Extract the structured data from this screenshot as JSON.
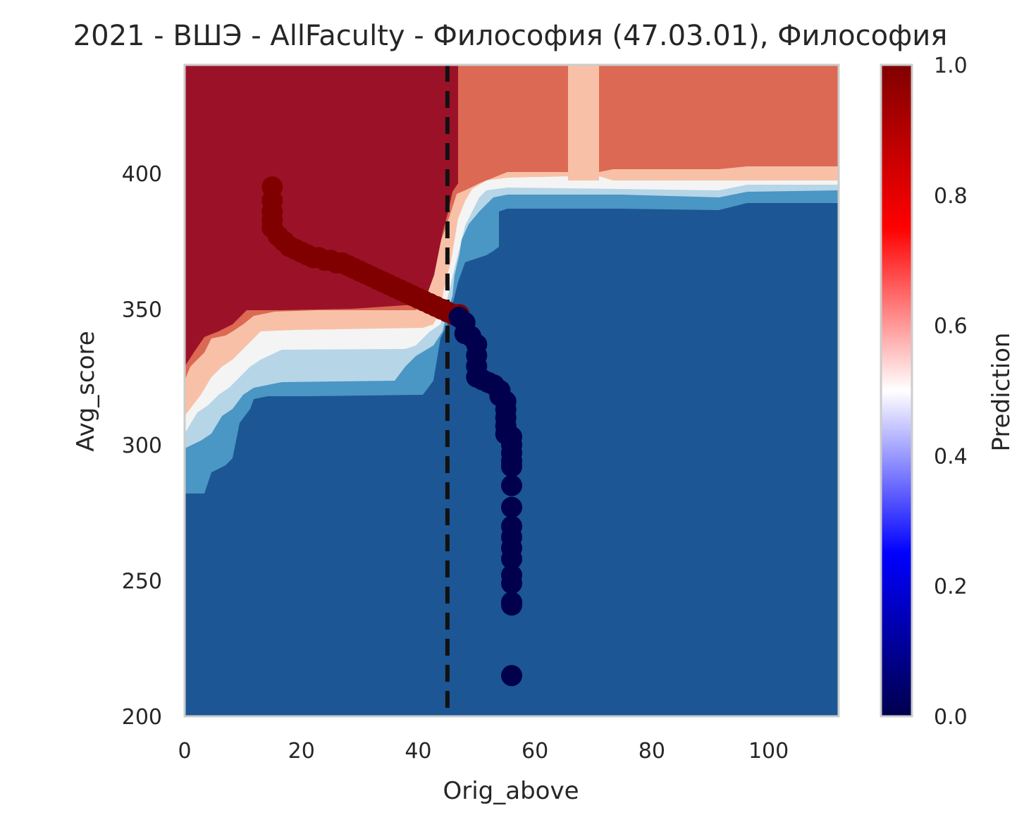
{
  "chart_data": {
    "type": "heatmap",
    "title": "2021 - ВШЭ - AllFaculty - Философия (47.03.01), Философия",
    "xlabel": "Orig_above",
    "ylabel": "Avg_score",
    "xlim": [
      0,
      112
    ],
    "ylim": [
      200,
      440
    ],
    "xticks": [
      "0",
      "20",
      "40",
      "60",
      "80",
      "100"
    ],
    "yticks": [
      "200",
      "250",
      "300",
      "350",
      "400"
    ],
    "colorbar": {
      "label": "Prediction",
      "range": [
        0.0,
        1.0
      ],
      "ticks": [
        "0.0",
        "0.2",
        "0.4",
        "0.6",
        "0.8",
        "1.0"
      ],
      "colormap": "seismic"
    },
    "threshold_line": {
      "x": 45,
      "style": "dashed",
      "color": "#111111"
    },
    "contour_colors": {
      "very_high": "#9b1228",
      "high": "#dc6953",
      "mid_high": "#f8c1a7",
      "mid": "#f4f4f4",
      "mid_low": "#b6d5e7",
      "low": "#4a96c4",
      "very_low": "#1c5694"
    },
    "points_admitted": {
      "color": "#800000",
      "points": [
        [
          15,
          395
        ],
        [
          15,
          390
        ],
        [
          15,
          386
        ],
        [
          15,
          383
        ],
        [
          15,
          380
        ],
        [
          16,
          377
        ],
        [
          17,
          375
        ],
        [
          18,
          373
        ],
        [
          19,
          372
        ],
        [
          20,
          371
        ],
        [
          21,
          370
        ],
        [
          22,
          369
        ],
        [
          23,
          369
        ],
        [
          24,
          368
        ],
        [
          25,
          368
        ],
        [
          26,
          367
        ],
        [
          27,
          367
        ],
        [
          28,
          366
        ],
        [
          29,
          365
        ],
        [
          30,
          364
        ],
        [
          31,
          363
        ],
        [
          32,
          362
        ],
        [
          33,
          361
        ],
        [
          34,
          360
        ],
        [
          35,
          359
        ],
        [
          36,
          358
        ],
        [
          37,
          357
        ],
        [
          38,
          356
        ],
        [
          39,
          355
        ],
        [
          40,
          354
        ],
        [
          41,
          353
        ],
        [
          42,
          352
        ],
        [
          43,
          351
        ],
        [
          44,
          350
        ],
        [
          45,
          349
        ],
        [
          46,
          348
        ],
        [
          47,
          348
        ]
      ]
    },
    "points_rejected": {
      "color": "#00004c",
      "points": [
        [
          47,
          347
        ],
        [
          48,
          345
        ],
        [
          48,
          341
        ],
        [
          49,
          340
        ],
        [
          50,
          337
        ],
        [
          50,
          333
        ],
        [
          50,
          329
        ],
        [
          50,
          325
        ],
        [
          51,
          324
        ],
        [
          52,
          323
        ],
        [
          53,
          322
        ],
        [
          54,
          320
        ],
        [
          54,
          318
        ],
        [
          55,
          316
        ],
        [
          55,
          313
        ],
        [
          55,
          310
        ],
        [
          55,
          307
        ],
        [
          55,
          304
        ],
        [
          56,
          303
        ],
        [
          56,
          300
        ],
        [
          56,
          297
        ],
        [
          56,
          294
        ],
        [
          56,
          292
        ],
        [
          56,
          285
        ],
        [
          56,
          277
        ],
        [
          56,
          270
        ],
        [
          56,
          266
        ],
        [
          56,
          262
        ],
        [
          56,
          258
        ],
        [
          56,
          252
        ],
        [
          56,
          249
        ],
        [
          56,
          242
        ],
        [
          56,
          241
        ],
        [
          56,
          215
        ]
      ]
    }
  }
}
